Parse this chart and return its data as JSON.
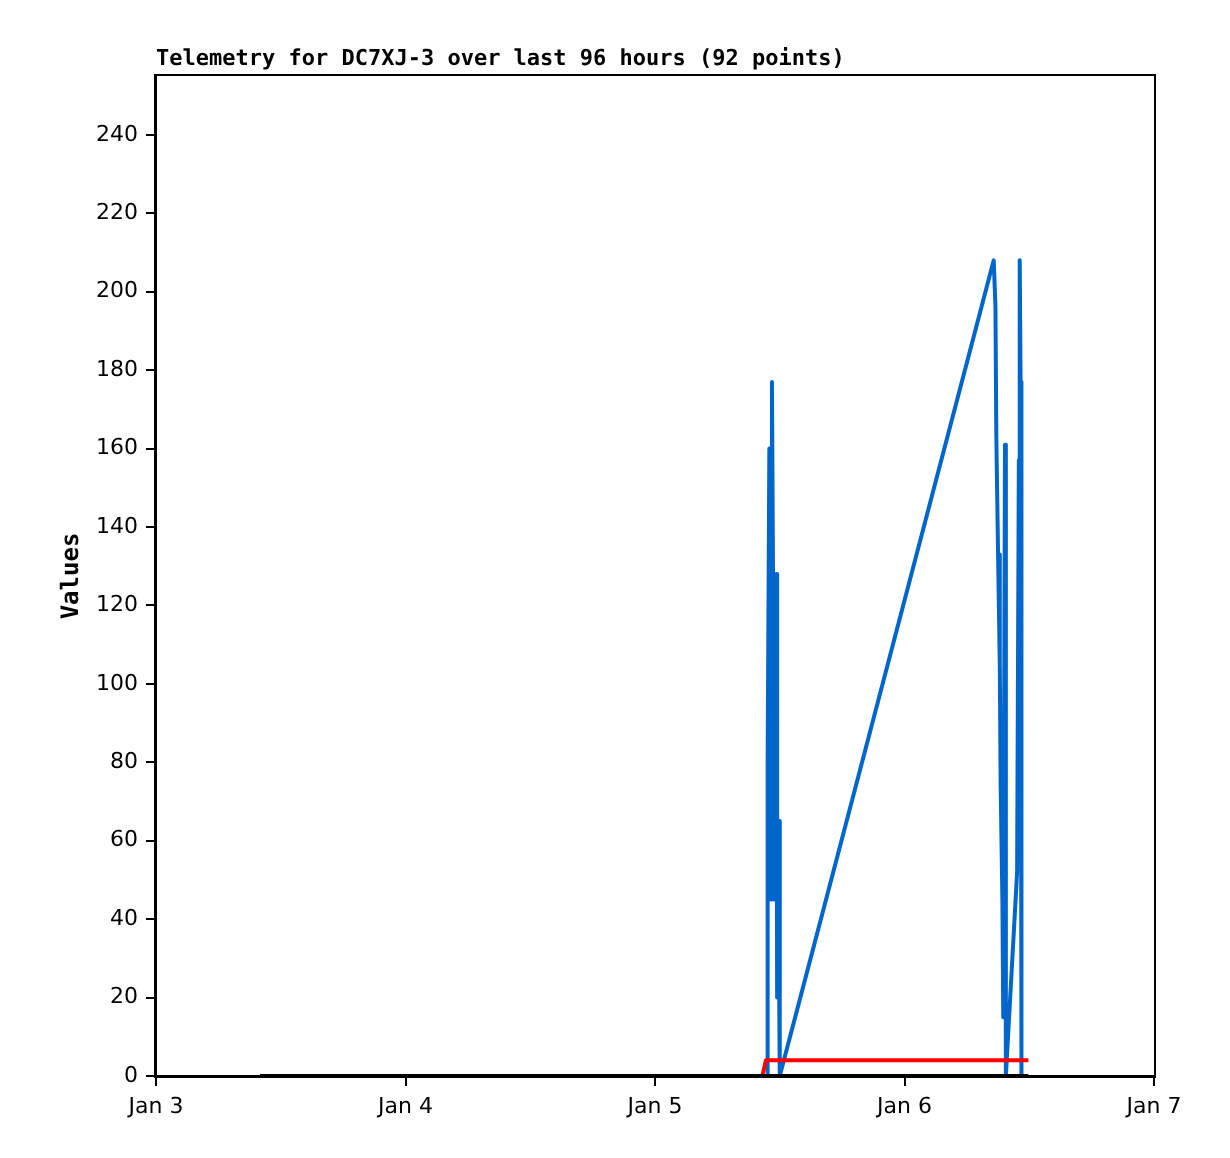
{
  "chart_data": {
    "type": "line",
    "title": "Telemetry for DC7XJ-3 over last 96 hours (92 points)",
    "ylabel": "Values",
    "xlim": [
      "--01-03",
      "--01-07"
    ],
    "xticks": [
      {
        "value": "--01-03",
        "label": "Jan 3"
      },
      {
        "value": "--01-04",
        "label": "Jan 4"
      },
      {
        "value": "--01-05",
        "label": "Jan 5"
      },
      {
        "value": "--01-06",
        "label": "Jan 6"
      },
      {
        "value": "--01-07",
        "label": "Jan 7"
      }
    ],
    "ylim": [
      0,
      255
    ],
    "yticks": [
      0,
      20,
      40,
      60,
      80,
      100,
      120,
      140,
      160,
      180,
      200,
      220,
      240
    ],
    "grid": false,
    "legend": false,
    "marker": "none",
    "line_style": "solid",
    "series": [
      {
        "color": "#000000",
        "x": [
          "--01-03T10:00",
          "--01-06T11:55"
        ],
        "values": [
          0,
          0
        ]
      },
      {
        "color": "#ff0000",
        "x": [
          "--01-05T10:20",
          "--01-05T10:40",
          "--01-06T11:55"
        ],
        "values": [
          0,
          4,
          4
        ]
      },
      {
        "color": "#0066cc",
        "x": [
          "--01-05T10:45",
          "--01-05T10:50",
          "--01-05T11:00",
          "--01-05T11:10",
          "--01-05T11:15",
          "--01-05T11:25",
          "--01-05T11:30",
          "--01-05T11:40",
          "--01-05T11:45",
          "--01-05T11:50",
          "--01-05T12:00",
          "--01-06T08:35",
          "--01-06T08:45",
          "--01-06T08:50",
          "--01-06T09:00",
          "--01-06T09:10",
          "--01-06T09:15",
          "--01-06T09:25",
          "--01-06T09:30",
          "--01-06T09:40",
          "--01-06T09:45",
          "--01-06T10:50",
          "--01-06T11:00",
          "--01-06T11:05",
          "--01-06T11:10",
          "--01-06T11:15"
        ],
        "values": [
          0,
          80,
          160,
          45,
          177,
          97,
          45,
          128,
          20,
          65,
          0,
          208,
          196,
          163,
          133,
          105,
          74,
          45,
          15,
          161,
          0,
          52,
          157,
          208,
          177,
          0
        ]
      }
    ]
  }
}
